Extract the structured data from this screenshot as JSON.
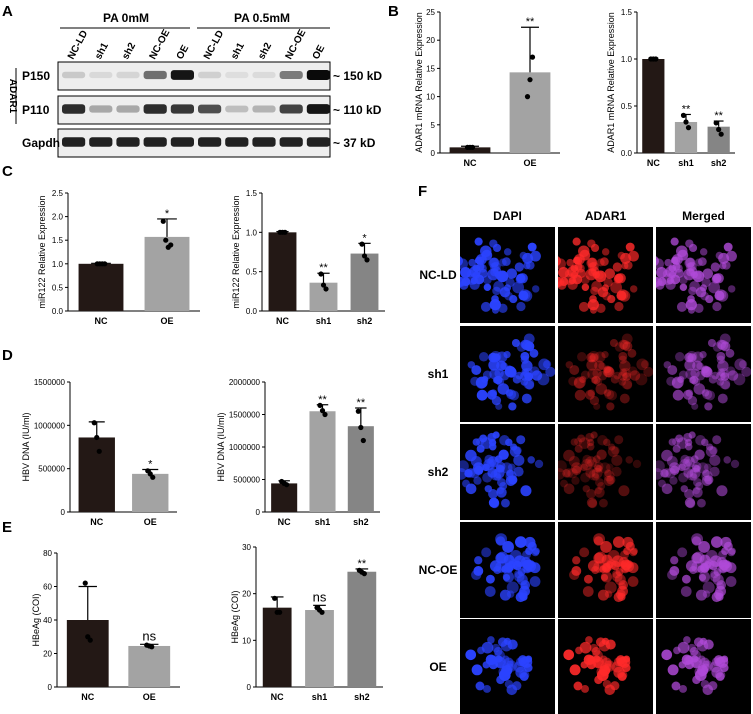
{
  "panel_labels": [
    "A",
    "B",
    "C",
    "D",
    "E",
    "F"
  ],
  "western": {
    "groups": [
      "PA 0mM",
      "PA 0.5mM"
    ],
    "lanes": [
      "NC-LD",
      "sh1",
      "sh2",
      "NC-OE",
      "OE",
      "NC-LD",
      "sh1",
      "sh2",
      "NC-OE",
      "OE"
    ],
    "side_label": "ADAR1",
    "rows": [
      {
        "name": "P150",
        "size": "~ 150 kD",
        "intensity": [
          0.15,
          0.08,
          0.1,
          0.55,
          0.95,
          0.12,
          0.06,
          0.07,
          0.5,
          1.0
        ]
      },
      {
        "name": "P110",
        "size": "~ 110 kD",
        "intensity": [
          0.85,
          0.3,
          0.3,
          0.85,
          0.8,
          0.7,
          0.2,
          0.25,
          0.75,
          0.95
        ]
      },
      {
        "name": "Gapdh",
        "size": "~ 37 kD",
        "intensity": [
          0.9,
          0.9,
          0.9,
          0.9,
          0.9,
          0.9,
          0.9,
          0.9,
          0.9,
          0.9
        ]
      }
    ]
  },
  "chart_data": [
    {
      "panel": "B",
      "type": "bar",
      "ylabel": "ADAR1 mRNA Relative Expression",
      "categories": [
        "NC",
        "OE"
      ],
      "values": [
        1,
        14.3
      ],
      "errors": [
        0.2,
        8
      ],
      "points": [
        [
          1,
          1,
          1
        ],
        [
          10,
          13,
          17
        ]
      ],
      "ylim": [
        0,
        25
      ],
      "yticks": [
        "0",
        "5",
        "10",
        "15",
        "20",
        "25"
      ],
      "sig": [
        "",
        "**"
      ],
      "colors": [
        "#231815",
        "#a3a3a3"
      ]
    },
    {
      "panel": "B",
      "type": "bar",
      "ylabel": "ADAR1 mRNA Relative Expression",
      "categories": [
        "NC",
        "sh1",
        "sh2"
      ],
      "values": [
        1,
        0.33,
        0.28
      ],
      "errors": [
        0.01,
        0.08,
        0.06
      ],
      "points": [
        [
          1,
          1,
          1
        ],
        [
          0.4,
          0.33,
          0.27
        ],
        [
          0.32,
          0.25,
          0.2
        ]
      ],
      "ylim": [
        0,
        1.5
      ],
      "yticks": [
        "0.0",
        "0.5",
        "1.0",
        "1.5"
      ],
      "sig": [
        "",
        "**",
        "**"
      ],
      "colors": [
        "#231815",
        "#a3a3a3",
        "#858585"
      ]
    },
    {
      "panel": "C",
      "type": "bar",
      "ylabel": "miR122 Relative Expression",
      "categories": [
        "NC",
        "OE"
      ],
      "values": [
        1,
        1.57
      ],
      "errors": [
        0.01,
        0.38
      ],
      "points": [
        [
          1,
          1,
          1,
          1
        ],
        [
          1.9,
          1.5,
          1.35,
          1.4
        ]
      ],
      "ylim": [
        0,
        2.5
      ],
      "yticks": [
        "0.0",
        "0.5",
        "1.0",
        "1.5",
        "2.0",
        "2.5"
      ],
      "sig": [
        "",
        "*"
      ],
      "colors": [
        "#231815",
        "#a3a3a3"
      ]
    },
    {
      "panel": "C",
      "type": "bar",
      "ylabel": "miR122 Relative Expression",
      "categories": [
        "NC",
        "sh1",
        "sh2"
      ],
      "values": [
        1,
        0.36,
        0.73
      ],
      "errors": [
        0.01,
        0.12,
        0.13
      ],
      "points": [
        [
          1,
          1,
          1
        ],
        [
          0.47,
          0.33,
          0.28
        ],
        [
          0.85,
          0.7,
          0.65
        ]
      ],
      "ylim": [
        0,
        1.5
      ],
      "yticks": [
        "0.0",
        "0.5",
        "1.0",
        "1.5"
      ],
      "sig": [
        "",
        "**",
        "*"
      ],
      "colors": [
        "#231815",
        "#a3a3a3",
        "#858585"
      ]
    },
    {
      "panel": "D",
      "type": "bar",
      "ylabel": "HBV DNA (IU/ml)",
      "categories": [
        "NC",
        "OE"
      ],
      "values": [
        860000,
        440000
      ],
      "errors": [
        180000,
        50000
      ],
      "points": [
        [
          1030000,
          860000,
          700000
        ],
        [
          475000,
          440000,
          400000
        ]
      ],
      "ylim": [
        0,
        1500000
      ],
      "yticks": [
        "0",
        "500000",
        "1000000",
        "1500000"
      ],
      "sig": [
        "",
        "*"
      ],
      "colors": [
        "#231815",
        "#a3a3a3"
      ]
    },
    {
      "panel": "D",
      "type": "bar",
      "ylabel": "HBV DNA (IU/ml)",
      "categories": [
        "NC",
        "sh1",
        "sh2"
      ],
      "values": [
        440000,
        1550000,
        1320000
      ],
      "errors": [
        40000,
        100000,
        280000
      ],
      "points": [
        [
          470000,
          440000,
          420000
        ],
        [
          1640000,
          1560000,
          1500000
        ],
        [
          1550000,
          1300000,
          1100000
        ]
      ],
      "ylim": [
        0,
        2000000
      ],
      "yticks": [
        "0",
        "500000",
        "1000000",
        "1500000",
        "2000000"
      ],
      "sig": [
        "",
        "**",
        "**"
      ],
      "colors": [
        "#231815",
        "#a3a3a3",
        "#858585"
      ]
    },
    {
      "panel": "E",
      "type": "bar",
      "ylabel": "HBeAg (COI)",
      "categories": [
        "NC",
        "OE"
      ],
      "values": [
        40,
        24.5
      ],
      "errors": [
        20,
        1
      ],
      "points": [
        [
          62,
          30,
          28
        ],
        [
          25,
          24.5,
          24
        ]
      ],
      "ylim": [
        0,
        80
      ],
      "yticks": [
        "0",
        "20",
        "40",
        "60",
        "80"
      ],
      "sig": [
        "",
        "ns"
      ],
      "colors": [
        "#231815",
        "#a3a3a3"
      ]
    },
    {
      "panel": "E",
      "type": "bar",
      "ylabel": "HBeAg (COI)",
      "categories": [
        "NC",
        "sh1",
        "sh2"
      ],
      "values": [
        17,
        16.5,
        24.7
      ],
      "errors": [
        2.3,
        1,
        0.6
      ],
      "points": [
        [
          19,
          16,
          16
        ],
        [
          17,
          16.5,
          16
        ],
        [
          25,
          24.6,
          24.3
        ]
      ],
      "ylim": [
        0,
        30
      ],
      "yticks": [
        "0",
        "10",
        "20",
        "30"
      ],
      "sig": [
        "",
        "ns",
        "**"
      ],
      "colors": [
        "#231815",
        "#a3a3a3",
        "#858585"
      ]
    }
  ],
  "microscopy": {
    "columns": [
      "DAPI",
      "ADAR1",
      "Merged"
    ],
    "rows": [
      "NC-LD",
      "sh1",
      "sh2",
      "NC-OE",
      "OE"
    ],
    "channel_colors": [
      "#2b43ff",
      "#ff2a2a",
      "#b04ad8"
    ],
    "density": [
      0.9,
      0.75,
      0.7,
      0.55,
      0.35
    ],
    "red_intensity": [
      0.85,
      0.4,
      0.35,
      0.75,
      0.95
    ]
  }
}
